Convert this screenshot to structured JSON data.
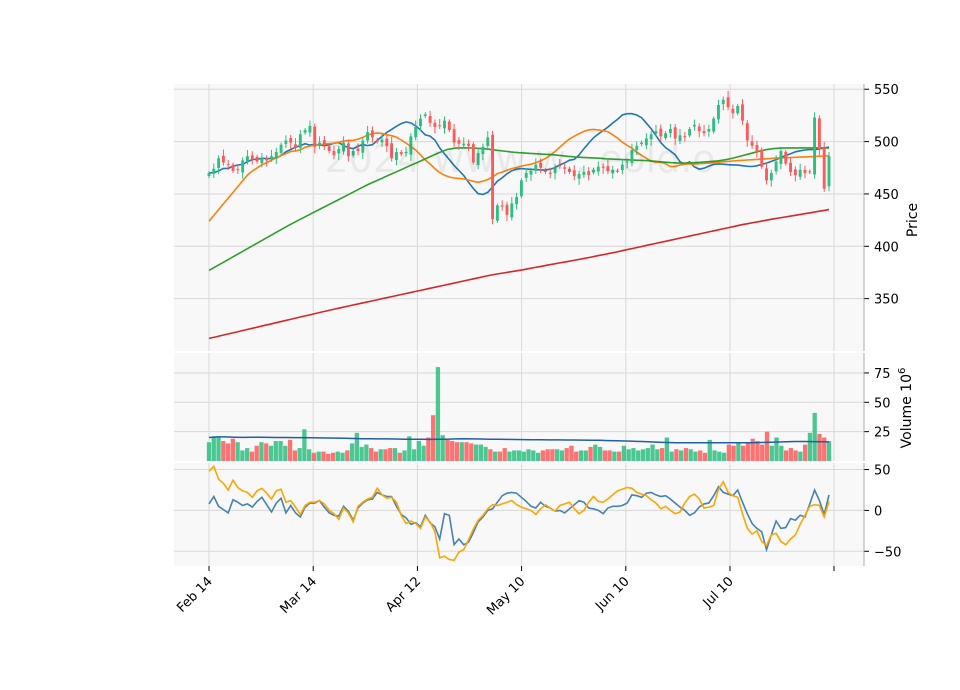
{
  "chart_data": {
    "type": "candlestick",
    "panels": [
      "price",
      "volume",
      "oscillator"
    ],
    "watermark": "2024 www.w...eold.o",
    "x_tick_labels": [
      "Feb 14",
      "Mar 14",
      "Apr 12",
      "May 10",
      "Jun 10",
      "Jul 10"
    ],
    "price": {
      "ylabel": "Price",
      "ylim": [
        300,
        555
      ],
      "yticks": [
        350,
        400,
        450,
        500,
        550
      ],
      "up_color": "#2dbf7f",
      "down_color": "#ff5a5a",
      "closes": [
        470,
        474,
        484,
        480,
        478,
        472,
        473,
        482,
        486,
        483,
        481,
        484,
        482,
        486,
        490,
        497,
        501,
        499,
        494,
        507,
        511,
        515,
        495,
        499,
        497,
        491,
        487,
        493,
        499,
        486,
        491,
        491,
        501,
        509,
        504,
        500,
        502,
        496,
        484,
        490,
        488,
        490,
        505,
        514,
        522,
        526,
        518,
        514,
        515,
        520,
        511,
        499,
        498,
        498,
        496,
        480,
        489,
        495,
        504,
        426,
        439,
        438,
        430,
        441,
        447,
        463,
        470,
        472,
        478,
        475,
        471,
        469,
        475,
        477,
        474,
        471,
        467,
        469,
        471,
        468,
        473,
        476,
        475,
        472,
        473,
        472,
        478,
        481,
        492,
        496,
        499,
        503,
        507,
        510,
        505,
        508,
        512,
        503,
        506,
        505,
        512,
        516,
        510,
        508,
        512,
        522,
        535,
        540,
        533,
        527,
        534,
        520,
        501,
        496,
        490,
        476,
        463,
        470,
        481,
        491,
        479,
        471,
        468,
        473,
        470,
        471,
        523,
        493,
        455,
        486
      ],
      "series": [
        {
          "name": "",
          "color": "#1f77b4",
          "values": [
            470,
            470.3,
            472,
            474.4,
            474.4,
            476.4,
            477.6,
            478.2,
            480.8,
            482.8,
            483.2,
            484,
            483.8,
            483.8,
            484.4,
            486.6,
            490.2,
            492.4,
            494.6,
            496.2,
            498,
            496.6,
            497.4,
            496.6,
            496.2,
            496.8,
            498.6,
            499,
            496.2,
            494.2,
            493.2,
            495.6,
            497.2,
            496.2,
            497,
            501,
            505,
            508.8,
            511.6,
            514.6,
            517.2,
            518.8,
            517.8,
            515,
            511.2,
            506.4,
            505.2,
            501.4,
            494,
            488.2,
            482.8,
            477.2,
            472.4,
            467.6,
            461.2,
            455.2,
            450.2,
            449.6,
            451.6,
            456.8,
            462.2,
            465.4,
            469.2,
            472.2,
            473.6,
            474.2,
            473.8,
            473.4,
            473.4,
            472.8,
            473,
            473.6,
            475.2,
            477.8,
            479.6,
            482.2,
            483,
            487.2,
            493.2,
            498.6,
            503.6,
            507.2,
            510.6,
            513.8,
            517.8,
            521.2,
            525.4,
            526.6,
            526.6,
            525.4,
            522.8,
            517.6,
            512.2,
            505.6,
            499,
            494.2,
            491,
            487.4,
            480.8,
            478.4,
            480.6,
            475.8,
            473.6,
            474.6,
            476.6,
            478.2,
            478.7,
            478.4,
            477.9,
            477.7,
            477.5,
            477,
            476.4,
            476.2,
            476.9,
            478.2,
            479.5,
            481.1,
            482.8,
            484.9,
            486.7,
            488.4,
            490.2,
            491.2,
            492,
            492.4,
            492.3,
            493,
            493.9,
            494.8
          ]
        },
        {
          "name": "",
          "color": "#ff7f0e",
          "values": [
            424,
            429.5,
            435,
            440.5,
            446,
            451.5,
            457,
            462.5,
            468,
            471.9,
            474.9,
            477.8,
            479.7,
            482.2,
            484.5,
            486.6,
            488.4,
            490.5,
            491.1,
            492.1,
            494.5,
            495.7,
            496.6,
            496.9,
            497.6,
            498.1,
            498.5,
            499.5,
            500.4,
            501.1,
            501.2,
            502.3,
            504.1,
            506.2,
            507.5,
            508.3,
            507.8,
            506.5,
            505.6,
            504.3,
            501.5,
            498.6,
            495.2,
            492,
            487.4,
            482.4,
            478.6,
            474.2,
            470.4,
            467.8,
            466.2,
            465.2,
            464.8,
            464.4,
            463.3,
            462.1,
            461.1,
            462.2,
            463.8,
            466.3,
            469.4,
            470.9,
            472.6,
            474.3,
            475.3,
            476.5,
            477.5,
            478.4,
            479.7,
            481.6,
            483.9,
            486.8,
            490.5,
            494.7,
            498.7,
            502.6,
            505.1,
            507.5,
            509.7,
            511.2,
            511.6,
            511.2,
            510.3,
            509.4,
            506.5,
            503.4,
            499.4,
            496.5,
            493.8,
            489.9,
            486.8,
            484.1,
            481.3,
            480.2,
            480.3,
            478.9,
            476.1,
            476.3,
            477.6,
            478.5,
            478.6,
            478.7,
            478.9,
            479.2,
            479.5,
            479.9,
            480.3,
            480.7,
            481.1,
            481.5,
            481.8,
            482.1,
            482.4,
            482.7,
            483,
            483.3,
            483.6,
            483.9,
            484.2,
            484.4,
            484.6,
            484.8,
            485,
            485.2,
            485.4,
            485.6,
            485.8,
            486,
            486.2,
            486.4
          ]
        },
        {
          "name": "",
          "color": "#2ca02c",
          "values": [
            377,
            381.3,
            385.6,
            389.9,
            394.2,
            398.5,
            402.8,
            407.1,
            411.4,
            415.7,
            420,
            423.9,
            427.8,
            431.7,
            435.6,
            439.5,
            443.4,
            447.3,
            451.2,
            455.1,
            459,
            462.4,
            465.8,
            469.2,
            472.6,
            476,
            479.4,
            482.8,
            486.2,
            489.6,
            492.5,
            493.8,
            494.1,
            493.9,
            493.5,
            492.8,
            491.9,
            491,
            490.1,
            489.4,
            488.9,
            488.4,
            488,
            487.6,
            486.9,
            486,
            485.4,
            484.9,
            484.5,
            484.1,
            483.6,
            483.2,
            482.8,
            482.5,
            482.1,
            481.8,
            481.3,
            480.6,
            479.9,
            479.5,
            479.5,
            479.8,
            480.3,
            480.9,
            481.6,
            482.7,
            484.3,
            486.3,
            488.3,
            490.3,
            492.2,
            493.3,
            493.8,
            494,
            494,
            494,
            494,
            494,
            494
          ]
        },
        {
          "name": "",
          "color": "#d62728",
          "values": [
            312,
            313.4,
            314.8,
            316.2,
            317.6,
            319,
            320.4,
            321.8,
            323.2,
            324.6,
            326,
            327.4,
            328.8,
            330.2,
            331.6,
            333,
            334.4,
            335.8,
            337.2,
            338.6,
            340,
            341.3,
            342.6,
            343.9,
            345.2,
            346.5,
            347.8,
            349.1,
            350.4,
            351.7,
            353,
            354.3,
            355.6,
            356.9,
            358.2,
            359.5,
            360.8,
            362.1,
            363.4,
            364.7,
            366,
            367.3,
            368.6,
            369.9,
            371.2,
            372.5,
            373.5,
            374.5,
            375.5,
            376.5,
            377.5,
            378.6,
            379.7,
            380.8,
            381.9,
            383,
            384.1,
            385.2,
            386.3,
            387.4,
            388.5,
            389.7,
            390.9,
            392.1,
            393.3,
            394.5,
            395.8,
            397.1,
            398.4,
            399.7,
            401,
            402.3,
            403.6,
            404.9,
            406.2,
            407.5,
            408.8,
            410.1,
            411.4,
            412.7,
            414,
            415.3,
            416.6,
            417.9,
            419.2,
            420.5,
            421.6,
            422.7,
            423.8,
            424.9,
            426,
            427,
            428,
            429,
            430,
            431,
            432,
            433,
            434,
            435
          ]
        }
      ]
    },
    "volume": {
      "ylabel": "Volume",
      "ylabel_suffix": "10",
      "ylabel_exponent": "6",
      "ylim": [
        0,
        92
      ],
      "yticks": [
        25,
        50,
        75
      ],
      "values": [
        16,
        21,
        21,
        17,
        15,
        19,
        16,
        9,
        11,
        8,
        13,
        16,
        15,
        13,
        17,
        17,
        13,
        18,
        9,
        11,
        27,
        10,
        7,
        8,
        8,
        6,
        7,
        8,
        7,
        9,
        15,
        24,
        12,
        14,
        11,
        8,
        10,
        10,
        11,
        11,
        7,
        9,
        21,
        10,
        17,
        13,
        20,
        39,
        80,
        22,
        18,
        17,
        16,
        16,
        16,
        15,
        14,
        14,
        12,
        10,
        8,
        8,
        11,
        8,
        9,
        9,
        8,
        10,
        9,
        7,
        9,
        10,
        10,
        10,
        9,
        11,
        13,
        8,
        9,
        9,
        12,
        14,
        12,
        9,
        9,
        8,
        8,
        13,
        10,
        11,
        9,
        10,
        11,
        14,
        10,
        11,
        20,
        8,
        10,
        9,
        11,
        10,
        8,
        9,
        7,
        18,
        9,
        8,
        7,
        14,
        13,
        16,
        13,
        16,
        19,
        17,
        14,
        25,
        13,
        20,
        13,
        9,
        11,
        9,
        8,
        14,
        24,
        41,
        23,
        20,
        17
      ],
      "ma_values": [
        20,
        20.5,
        20.5,
        20.3,
        20.1,
        20.3,
        20.2,
        20.1,
        20,
        20,
        19.9,
        19.9,
        19.8,
        19.7,
        19.6,
        19.5,
        19.4,
        19.2,
        19,
        18.9,
        18.8,
        18.8,
        18.7,
        18.6,
        18.6,
        18.5,
        18.4,
        18.5,
        18.6,
        18.8,
        18.9,
        18.8,
        18.7,
        18.6,
        18.5,
        18.4,
        18.3,
        18.2,
        18.1,
        18.1,
        18,
        18,
        17.9,
        17.9,
        17.8,
        17.7,
        17.6,
        17.4,
        17.2,
        17,
        16.8,
        16.6,
        16.3,
        16,
        15.8,
        15.6,
        15.6,
        15.6,
        15.6,
        15.6,
        15.6,
        15.6,
        15.5,
        15.5,
        15.6,
        15.8,
        16,
        16.2,
        16.4,
        16.6,
        16.6,
        16.5,
        16.4,
        16.3
      ]
    },
    "oscillator": {
      "ylim": [
        -68,
        58
      ],
      "yticks": [
        -50,
        0,
        50
      ],
      "series": [
        {
          "name": "",
          "color": "#4682b4",
          "values": [
            8,
            17,
            5,
            1,
            -3,
            13,
            10,
            6,
            8,
            4,
            11,
            16,
            7,
            -2,
            9,
            15,
            -3,
            6,
            -3,
            -8,
            4,
            9,
            9,
            12,
            4,
            -3,
            -6,
            -7,
            5,
            -1,
            -12,
            3,
            9,
            13,
            14,
            22,
            19,
            17,
            17,
            5,
            -5,
            -9,
            -17,
            -15,
            -20,
            -6,
            -15,
            -20,
            -35,
            -4,
            -6,
            -42,
            -35,
            -42,
            -39,
            -27,
            -14,
            -8,
            0,
            2,
            10,
            18,
            21,
            22,
            21,
            16,
            11,
            5,
            3,
            10,
            5,
            3,
            -1,
            0,
            -3,
            2,
            7,
            12,
            10,
            3,
            2,
            0,
            -4,
            3,
            5,
            5,
            6,
            9,
            19,
            18,
            16,
            21,
            22,
            19,
            17,
            18,
            14,
            9,
            4,
            0,
            -6,
            -3,
            4,
            8,
            9,
            18,
            29,
            22,
            20,
            18,
            25,
            10,
            -4,
            -16,
            -22,
            -26,
            -48,
            -30,
            -13,
            -22,
            -21,
            -10,
            -12,
            -6,
            -8,
            8,
            25,
            12,
            -5,
            19
          ]
        },
        {
          "name": "",
          "color": "#ffa500",
          "values": [
            48,
            54,
            38,
            33,
            25,
            37,
            28,
            24,
            22,
            16,
            24,
            27,
            21,
            14,
            24,
            26,
            10,
            12,
            4,
            -5,
            6,
            10,
            10,
            12,
            8,
            0,
            -4,
            -11,
            3,
            -3,
            -14,
            5,
            10,
            14,
            16,
            27,
            19,
            15,
            16,
            10,
            -6,
            -16,
            -13,
            -16,
            -22,
            -8,
            -14,
            -26,
            -58,
            -56,
            -60,
            -61,
            -51,
            -48,
            -36,
            -23,
            -12,
            -6,
            2,
            7,
            6,
            8,
            10,
            12,
            7,
            4,
            2,
            0,
            -5,
            2,
            7,
            3,
            -1,
            6,
            8,
            10,
            2,
            -4,
            0,
            10,
            17,
            11,
            10,
            14,
            19,
            24,
            26,
            28,
            27,
            22,
            20,
            18,
            13,
            9,
            2,
            5,
            0,
            -4,
            -2,
            9,
            17,
            20,
            14,
            3,
            4,
            6,
            26,
            35,
            22,
            18,
            16,
            -4,
            -22,
            -29,
            -25,
            -38,
            -43,
            -30,
            -28,
            -38,
            -42,
            -35,
            -30,
            -17,
            -6,
            5,
            7,
            6,
            -8,
            11
          ]
        }
      ]
    }
  }
}
